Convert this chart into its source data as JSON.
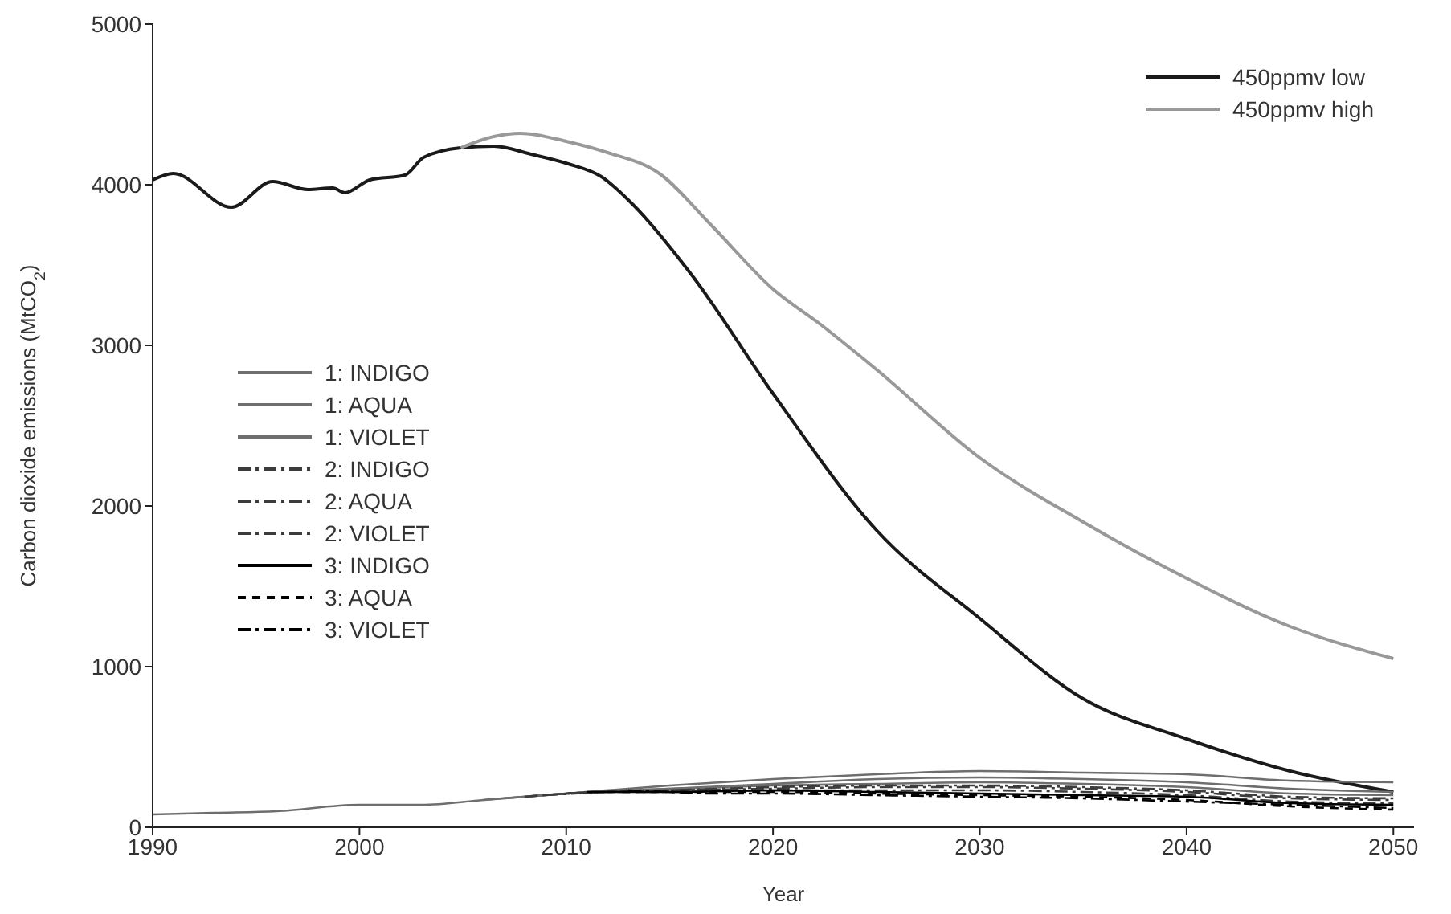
{
  "chart_data": {
    "type": "line",
    "xlabel": "Year",
    "ylabel": "Carbon dioxide emissions (MtCO$_{2}$)",
    "xlim": [
      1990,
      2051
    ],
    "xticks": [
      1990,
      2000,
      2010,
      2020,
      2030,
      2040,
      2050
    ],
    "ylim": [
      0,
      5000
    ],
    "yticks": [
      0,
      1000,
      2000,
      3000,
      4000,
      5000
    ],
    "grid": false,
    "legend": "top right",
    "marker": "none",
    "series": [
      {
        "name": "450ppmv low",
        "color": "#1a1a1a",
        "line_style": "solid",
        "x": [
          1990,
          1991,
          1993.8,
          1995.8,
          1997.5,
          1998.7,
          1999.3,
          2000.5,
          2002.2,
          2003.1,
          2004.9,
          2006.5,
          2008.3,
          2010.1,
          2011.7,
          2013.2,
          2016,
          2020,
          2025,
          2030,
          2035,
          2040,
          2045,
          2050
        ],
        "values": [
          4030,
          4070,
          3860,
          4020,
          3970,
          3980,
          3950,
          4030,
          4060,
          4170,
          4230,
          4240,
          4190,
          4130,
          4050,
          3880,
          3450,
          2700,
          1850,
          1300,
          800,
          550,
          350,
          220
        ]
      },
      {
        "name": "450ppmv high",
        "color": "#999999",
        "line_style": "solid",
        "x": [
          2004.9,
          2006.5,
          2007.8,
          2010,
          2012,
          2014.5,
          2017,
          2020,
          2022.3,
          2025,
          2030,
          2035,
          2040,
          2045,
          2050
        ],
        "values": [
          4230,
          4300,
          4320,
          4270,
          4200,
          4070,
          3750,
          3350,
          3130,
          2850,
          2300,
          1900,
          1550,
          1250,
          1050
        ]
      },
      {
        "name": "1: INDIGO",
        "color": "#6e6e6e",
        "line_style": "solid",
        "x": [
          1990,
          1993,
          1996,
          2000,
          2003,
          2006,
          2010,
          2015,
          2020,
          2025,
          2030,
          2035,
          2040,
          2045,
          2050
        ],
        "values": [
          80,
          90,
          100,
          140,
          140,
          170,
          210,
          260,
          300,
          330,
          350,
          340,
          330,
          290,
          280
        ]
      },
      {
        "name": "1: AQUA",
        "color": "#6e6e6e",
        "line_style": "solid",
        "x": [
          2006,
          2010,
          2015,
          2020,
          2025,
          2030,
          2035,
          2040,
          2045,
          2050
        ],
        "values": [
          170,
          210,
          240,
          270,
          300,
          310,
          300,
          280,
          240,
          220
        ]
      },
      {
        "name": "1: VIOLET",
        "color": "#6e6e6e",
        "line_style": "solid",
        "x": [
          2007,
          2010,
          2015,
          2020,
          2025,
          2030,
          2035,
          2040,
          2045,
          2050
        ],
        "values": [
          180,
          210,
          240,
          260,
          270,
          280,
          270,
          250,
          210,
          200
        ]
      },
      {
        "name": "2: INDIGO",
        "color": "#3c3c3c",
        "line_style": "dotted",
        "x": [
          2008,
          2010,
          2015,
          2020,
          2025,
          2030,
          2035,
          2040,
          2045,
          2050
        ],
        "values": [
          190,
          210,
          230,
          250,
          260,
          260,
          250,
          230,
          190,
          180
        ]
      },
      {
        "name": "2: AQUA",
        "color": "#3c3c3c",
        "line_style": "dotted",
        "x": [
          2009,
          2012,
          2015,
          2020,
          2025,
          2030,
          2035,
          2040,
          2045,
          2050
        ],
        "values": [
          200,
          220,
          230,
          240,
          250,
          250,
          240,
          220,
          180,
          170
        ]
      },
      {
        "name": "2: VIOLET",
        "color": "#3c3c3c",
        "line_style": "dotted",
        "x": [
          2010,
          2012,
          2015,
          2020,
          2025,
          2030,
          2035,
          2040,
          2045,
          2050
        ],
        "values": [
          210,
          220,
          220,
          230,
          230,
          230,
          220,
          200,
          160,
          150
        ]
      },
      {
        "name": "3: INDIGO",
        "color": "#000000",
        "line_style": "solid",
        "x": [
          2011,
          2013,
          2015,
          2020,
          2025,
          2030,
          2035,
          2040,
          2045,
          2050
        ],
        "values": [
          220,
          220,
          220,
          230,
          220,
          210,
          200,
          190,
          150,
          140
        ]
      },
      {
        "name": "3: AQUA",
        "color": "#000000",
        "line_style": "dashed",
        "x": [
          2012,
          2014,
          2016,
          2020,
          2025,
          2030,
          2035,
          2040,
          2045,
          2050
        ],
        "values": [
          220,
          220,
          220,
          220,
          210,
          200,
          190,
          170,
          130,
          110
        ]
      },
      {
        "name": "3: VIOLET",
        "color": "#000000",
        "line_style": "dotted",
        "x": [
          2013,
          2015,
          2017,
          2020,
          2025,
          2030,
          2035,
          2040,
          2045,
          2050
        ],
        "values": [
          230,
          220,
          210,
          210,
          200,
          190,
          180,
          160,
          140,
          120
        ]
      }
    ]
  }
}
